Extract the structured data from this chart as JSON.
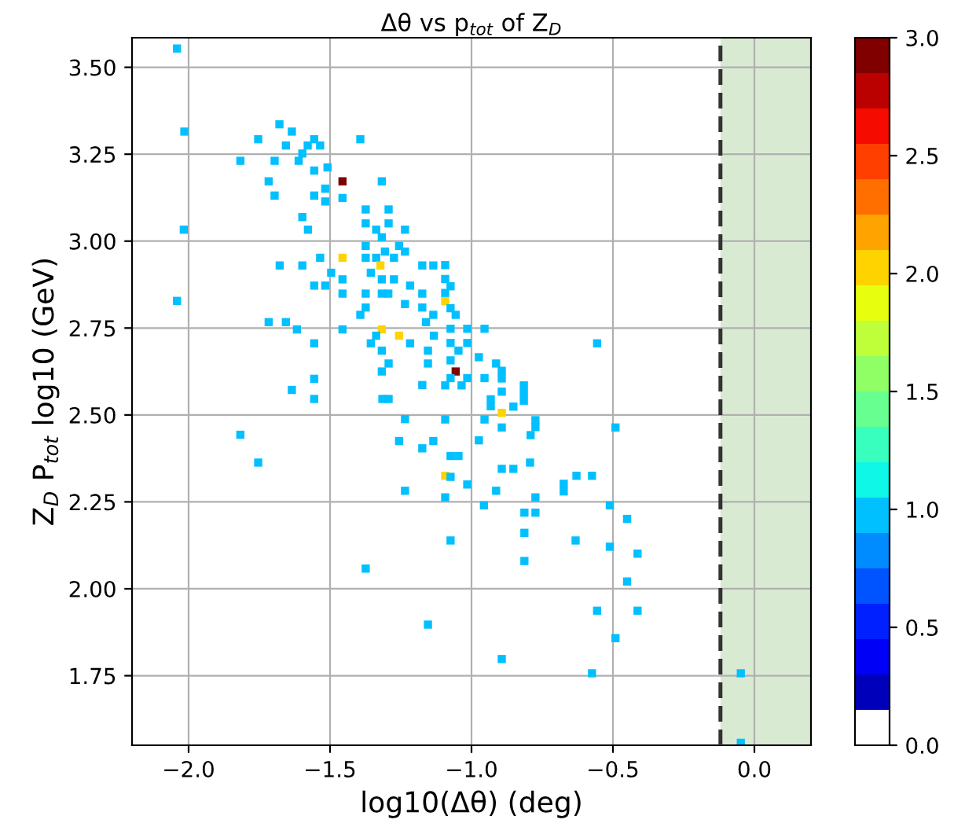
{
  "chart_data": {
    "type": "scatter",
    "title": "Δθ vs p$_{tot}$ of Z$_{D}$",
    "xlabel": "log10(Δθ) (deg)",
    "ylabel": "Z$_{D}$ P$_{tot}$ log10 (GeV)",
    "marker": "square",
    "grid": true,
    "xlim": [
      -2.2,
      0.2
    ],
    "ylim": [
      1.55,
      3.585
    ],
    "xticks": [
      {
        "value": -2.0,
        "label": "−2.0"
      },
      {
        "value": -1.5,
        "label": "−1.5"
      },
      {
        "value": -1.0,
        "label": "−1.0"
      },
      {
        "value": -0.5,
        "label": "−0.5"
      },
      {
        "value": 0.0,
        "label": "0.0"
      }
    ],
    "yticks": [
      {
        "value": 1.75,
        "label": "1.75"
      },
      {
        "value": 2.0,
        "label": "2.00"
      },
      {
        "value": 2.25,
        "label": "2.25"
      },
      {
        "value": 2.5,
        "label": "2.50"
      },
      {
        "value": 2.75,
        "label": "2.75"
      },
      {
        "value": 3.0,
        "label": "3.00"
      },
      {
        "value": 3.25,
        "label": "3.25"
      },
      {
        "value": 3.5,
        "label": "3.50"
      }
    ],
    "clim": [
      0,
      3
    ],
    "cticks": [
      {
        "value": 0,
        "label": "0.0"
      },
      {
        "value": 0.5,
        "label": "0.5"
      },
      {
        "value": 1.0,
        "label": "1.0"
      },
      {
        "value": 1.5,
        "label": "1.5"
      },
      {
        "value": 2.0,
        "label": "2.0"
      },
      {
        "value": 2.5,
        "label": "2.5"
      },
      {
        "value": 3.0,
        "label": "3.0"
      }
    ],
    "ref_lines": [
      {
        "axis": "x",
        "value": -0.12,
        "color": "#333333",
        "line_style": "dashed"
      }
    ],
    "bands": [
      {
        "axis": "x",
        "from": -0.12,
        "to": 0.2,
        "color": "#d9ead3"
      }
    ],
    "x": [
      -2.041,
      -2.015,
      -1.679,
      -1.635,
      -1.754,
      -1.656,
      -1.556,
      -1.579,
      -1.535,
      -1.393,
      -1.817,
      -1.696,
      -1.611,
      -1.598,
      -1.556,
      -1.509,
      -1.456,
      -1.317,
      -1.717,
      -1.696,
      -1.556,
      -1.517,
      -1.517,
      -1.456,
      -1.374,
      -1.293,
      -1.598,
      -1.578,
      -2.017,
      -1.374,
      -1.293,
      -1.337,
      -1.317,
      -1.235,
      -1.374,
      -1.306,
      -1.256,
      -1.235,
      -1.456,
      -1.535,
      -1.374,
      -1.337,
      -1.274,
      -1.322,
      -1.678,
      -1.598,
      -1.174,
      -1.135,
      -1.496,
      -1.356,
      -1.456,
      -1.317,
      -1.274,
      -1.556,
      -1.517,
      -1.217,
      -1.456,
      -1.374,
      -1.317,
      -1.294,
      -1.174,
      -2.041,
      -1.374,
      -1.235,
      -1.174,
      -1.393,
      -1.135,
      -1.717,
      -1.656,
      -1.161,
      -1.617,
      -1.456,
      -1.317,
      -1.256,
      -1.337,
      -1.556,
      -1.356,
      -1.217,
      -1.317,
      -1.154,
      -1.293,
      -1.154,
      -1.317,
      -1.556,
      -1.174,
      -1.635,
      -1.556,
      -1.315,
      -1.293,
      -1.235,
      -1.817,
      -1.256,
      -1.135,
      -1.174,
      -1.754,
      -1.235,
      -1.374,
      -1.154,
      -1.093,
      -1.093,
      -1.074,
      -1.093,
      -1.093,
      -1.074,
      -1.056,
      -1.074,
      -1.015,
      -0.954,
      -1.133,
      -1.074,
      -1.015,
      -1.046,
      -0.974,
      -0.913,
      -1.074,
      -1.056,
      -0.893,
      -0.893,
      -1.074,
      -1.015,
      -0.954,
      -1.093,
      -1.035,
      -0.893,
      -0.815,
      -0.815,
      -0.815,
      -0.932,
      -0.932,
      -0.852,
      -0.893,
      -1.093,
      -0.954,
      -0.774,
      -0.774,
      -0.893,
      -0.791,
      -0.974,
      -0.491,
      -0.556,
      -1.074,
      -1.046,
      -0.893,
      -0.852,
      -0.793,
      -1.093,
      -0.629,
      -0.574,
      -1.074,
      -1.015,
      -0.913,
      -0.674,
      -0.674,
      -1.093,
      -0.956,
      -0.774,
      -0.813,
      -0.774,
      -0.511,
      -0.45,
      -1.074,
      -0.813,
      -0.632,
      -0.511,
      -0.413,
      -0.813,
      -0.45,
      -0.556,
      -0.413,
      -0.491,
      -0.893,
      -0.574,
      -0.048,
      -0.048
    ],
    "values": [
      3.554,
      3.315,
      3.336,
      3.315,
      3.293,
      3.275,
      3.293,
      3.275,
      3.275,
      3.293,
      3.231,
      3.231,
      3.231,
      3.252,
      3.203,
      3.212,
      3.172,
      3.172,
      3.172,
      3.131,
      3.131,
      3.151,
      3.114,
      3.124,
      3.091,
      3.091,
      3.069,
      3.033,
      3.033,
      3.051,
      3.051,
      3.033,
      3.011,
      3.033,
      2.986,
      2.97,
      2.986,
      2.97,
      2.952,
      2.952,
      2.952,
      2.952,
      2.952,
      2.93,
      2.93,
      2.93,
      2.93,
      2.93,
      2.909,
      2.909,
      2.89,
      2.89,
      2.89,
      2.872,
      2.872,
      2.872,
      2.849,
      2.849,
      2.849,
      2.849,
      2.849,
      2.828,
      2.809,
      2.819,
      2.809,
      2.788,
      2.788,
      2.767,
      2.767,
      2.767,
      2.746,
      2.746,
      2.746,
      2.728,
      2.728,
      2.706,
      2.706,
      2.706,
      2.685,
      2.685,
      2.648,
      2.648,
      2.625,
      2.604,
      2.586,
      2.572,
      2.546,
      2.546,
      2.546,
      2.488,
      2.443,
      2.425,
      2.425,
      2.404,
      2.363,
      2.282,
      2.058,
      1.897,
      2.931,
      2.891,
      2.87,
      2.851,
      2.827,
      2.807,
      2.788,
      2.748,
      2.748,
      2.748,
      2.728,
      2.707,
      2.707,
      2.685,
      2.666,
      2.648,
      2.657,
      2.625,
      2.627,
      2.605,
      2.606,
      2.606,
      2.606,
      2.585,
      2.585,
      2.567,
      2.585,
      2.563,
      2.541,
      2.545,
      2.525,
      2.524,
      2.506,
      2.487,
      2.487,
      2.485,
      2.465,
      2.464,
      2.442,
      2.427,
      2.464,
      2.706,
      2.382,
      2.382,
      2.345,
      2.345,
      2.363,
      2.325,
      2.325,
      2.325,
      2.322,
      2.3,
      2.282,
      2.302,
      2.28,
      2.263,
      2.24,
      2.263,
      2.219,
      2.219,
      2.24,
      2.201,
      2.139,
      2.161,
      2.139,
      2.121,
      2.101,
      2.08,
      2.021,
      1.937,
      1.937,
      1.858,
      1.798,
      1.757,
      1.757,
      1.557
    ],
    "cvalues": [
      1,
      1,
      1,
      1,
      1,
      1,
      1,
      1,
      1,
      1,
      1,
      1,
      1,
      1,
      1,
      1,
      3,
      1,
      1,
      1,
      1,
      1,
      1,
      1,
      1,
      1,
      1,
      1,
      1,
      1,
      1,
      1,
      1,
      1,
      1,
      1,
      1,
      1,
      2,
      1,
      1,
      1,
      1,
      2,
      1,
      1,
      1,
      1,
      1,
      1,
      1,
      1,
      1,
      1,
      1,
      1,
      1,
      1,
      1,
      1,
      1,
      1,
      1,
      1,
      1,
      1,
      1,
      1,
      1,
      1,
      1,
      1,
      2,
      2,
      1,
      1,
      1,
      1,
      1,
      1,
      1,
      1,
      1,
      1,
      1,
      1,
      1,
      1,
      1,
      1,
      1,
      1,
      1,
      1,
      1,
      1,
      1,
      1,
      1,
      1,
      1,
      1,
      2,
      1,
      1,
      1,
      1,
      1,
      1,
      1,
      1,
      1,
      1,
      1,
      1,
      3,
      1,
      1,
      1,
      1,
      1,
      1,
      1,
      1,
      1,
      1,
      1,
      1,
      1,
      1,
      2,
      1,
      1,
      1,
      1,
      1,
      1,
      1,
      1,
      1,
      1,
      1,
      1,
      1,
      1,
      2,
      1,
      1,
      1,
      1,
      1,
      1,
      1,
      1,
      1,
      1,
      1,
      1,
      1,
      1,
      1,
      1,
      1,
      1,
      1,
      1,
      1,
      1,
      1,
      1,
      1,
      1,
      1,
      1
    ]
  }
}
